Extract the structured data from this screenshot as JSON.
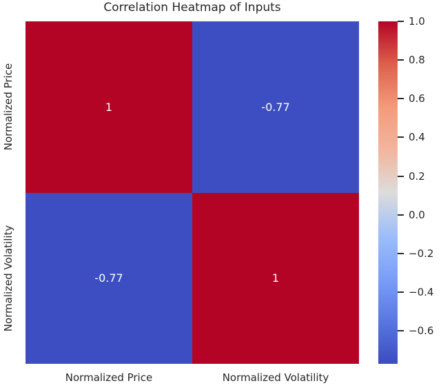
{
  "chart_data": {
    "type": "heatmap",
    "title": "Correlation Heatmap of Inputs",
    "x_categories": [
      "Normalized Price",
      "Normalized Volatility"
    ],
    "y_categories": [
      "Normalized Price",
      "Normalized Volatility"
    ],
    "matrix": [
      [
        1,
        -0.77
      ],
      [
        -0.77,
        1
      ]
    ],
    "cell_labels": [
      [
        "1",
        "-0.77"
      ],
      [
        "-0.77",
        "1"
      ]
    ],
    "cell_colors": [
      [
        "#b40426",
        "#3d4ec3"
      ],
      [
        "#3d4ec3",
        "#b40426"
      ]
    ],
    "colormap": "coolwarm",
    "vmin": -0.77,
    "vmax": 1.0,
    "annotation_text_color": "#ffffff",
    "label_text_color": "#262626",
    "colorbar_gradient_top_to_bottom": [
      "#b40426",
      "#dd604c",
      "#f49a7b",
      "#f2b59d",
      "#dddcdb",
      "#9dbefa",
      "#7b9ff9",
      "#5977e3",
      "#3b4cc0"
    ],
    "colorbar": {
      "ticks": [
        1.0,
        0.8,
        0.6,
        0.4,
        0.2,
        0.0,
        -0.2,
        -0.4,
        -0.6
      ],
      "tick_labels": [
        "1.0",
        "0.8",
        "0.6",
        "0.4",
        "0.2",
        "0.0",
        "−0.2",
        "−0.4",
        "−0.6"
      ]
    },
    "legend_position": "right",
    "grid": false
  }
}
